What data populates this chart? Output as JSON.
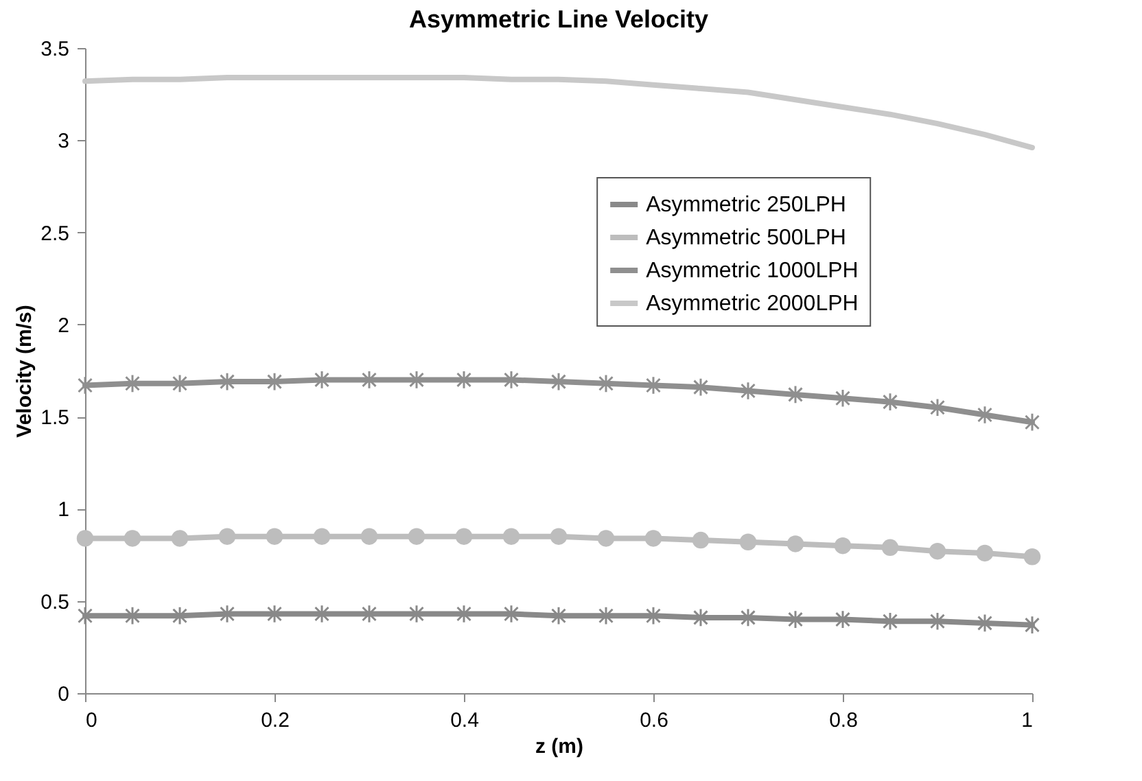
{
  "chart_data": {
    "type": "line",
    "title": "Asymmetric Line Velocity",
    "xlabel": "z (m)",
    "ylabel": "Velocity (m/s)",
    "x": [
      0,
      0.05,
      0.1,
      0.15,
      0.2,
      0.25,
      0.3,
      0.35,
      0.4,
      0.45,
      0.5,
      0.55,
      0.6,
      0.65,
      0.7,
      0.75,
      0.8,
      0.85,
      0.9,
      0.95,
      1
    ],
    "series": [
      {
        "name": "Asymmetric 250LPH",
        "color": "#898989",
        "marker": "cross",
        "values": [
          0.42,
          0.42,
          0.42,
          0.43,
          0.43,
          0.43,
          0.43,
          0.43,
          0.43,
          0.43,
          0.42,
          0.42,
          0.42,
          0.41,
          0.41,
          0.4,
          0.4,
          0.39,
          0.39,
          0.38,
          0.37
        ]
      },
      {
        "name": "Asymmetric 500LPH",
        "color": "#bdbdbd",
        "marker": "circle",
        "values": [
          0.84,
          0.84,
          0.84,
          0.85,
          0.85,
          0.85,
          0.85,
          0.85,
          0.85,
          0.85,
          0.85,
          0.84,
          0.84,
          0.83,
          0.82,
          0.81,
          0.8,
          0.79,
          0.77,
          0.76,
          0.74
        ]
      },
      {
        "name": "Asymmetric 1000LPH",
        "color": "#8f8f8f",
        "marker": "cross",
        "values": [
          1.67,
          1.68,
          1.68,
          1.69,
          1.69,
          1.7,
          1.7,
          1.7,
          1.7,
          1.7,
          1.69,
          1.68,
          1.67,
          1.66,
          1.64,
          1.62,
          1.6,
          1.58,
          1.55,
          1.51,
          1.47
        ]
      },
      {
        "name": "Asymmetric 2000LPH",
        "color": "#c8c8c8",
        "marker": "none",
        "values": [
          3.32,
          3.33,
          3.33,
          3.34,
          3.34,
          3.34,
          3.34,
          3.34,
          3.34,
          3.33,
          3.33,
          3.32,
          3.3,
          3.28,
          3.26,
          3.22,
          3.18,
          3.14,
          3.09,
          3.03,
          2.96
        ]
      }
    ],
    "xlim": [
      0,
      1
    ],
    "xticks": [
      0,
      0.2,
      0.4,
      0.6,
      0.8,
      1
    ],
    "ylim": [
      0,
      3.5
    ],
    "yticks": [
      0,
      0.5,
      1,
      1.5,
      2,
      2.5,
      3,
      3.5
    ],
    "grid": false,
    "legend": "right"
  }
}
